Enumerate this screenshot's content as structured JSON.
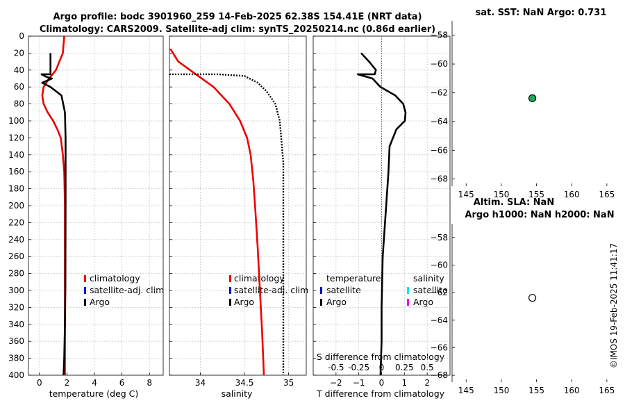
{
  "colors": {
    "climatology": "#ee0000",
    "satellite": "#0000dd",
    "argo": "#000000",
    "satellite_s": "#00e5ee",
    "argo_s": "#ee00ee",
    "sst_marker": "#22aa55"
  },
  "titles": {
    "line1": "Argo profile: bodc 3901960_259 14-Feb-2025 62.38S 154.41E (NRT data)",
    "line2": "Climatology: CARS2009. Satellite-adj clim: synTS_20250214.nc (0.86d earlier)",
    "sst_title": "sat. SST: NaN Argo: 0.731",
    "altim_title1": "Altim. SLA: NaN",
    "altim_title2": "Argo h1000: NaN h2000: NaN",
    "watermark": "©IMOS 19-Feb-2025 11:41:17"
  },
  "legends": {
    "temp": [
      "climatology",
      "satellite-adj. clim",
      "Argo"
    ],
    "sal": [
      "climatology",
      "satellite-adj. clim",
      "Argo"
    ],
    "diff_t_header": "temperature",
    "diff_s_header": "salinity",
    "diff_t": [
      "satellite",
      "Argo"
    ],
    "diff_s": [
      "satellite",
      "Argo"
    ]
  },
  "chart_data": [
    {
      "type": "line",
      "name": "temperature",
      "xlabel": "temperature (deg C)",
      "ylabel": "",
      "xlim": [
        -0.8,
        9
      ],
      "ylim": [
        0,
        400
      ],
      "xticks": [
        0,
        2,
        4,
        6,
        8
      ],
      "yticks": [
        0,
        20,
        40,
        60,
        80,
        100,
        120,
        140,
        160,
        180,
        200,
        220,
        240,
        260,
        280,
        300,
        320,
        340,
        360,
        380,
        400
      ],
      "series": [
        {
          "name": "climatology",
          "x": [
            1.8,
            1.7,
            1.2,
            0.7,
            0.3,
            0.2,
            0.3,
            0.6,
            1.0,
            1.3,
            1.55,
            1.7,
            1.8,
            1.85,
            1.85
          ],
          "y": [
            0,
            20,
            40,
            50,
            60,
            70,
            80,
            90,
            100,
            110,
            120,
            140,
            160,
            200,
            400
          ]
        },
        {
          "name": "Argo",
          "x": [
            0.8,
            0.8,
            0.15,
            0.5,
            0.9,
            0.2,
            0.8,
            1.6,
            1.85,
            1.9,
            1.9,
            1.88,
            1.85,
            1.8,
            1.75
          ],
          "y": [
            20,
            45,
            45,
            48,
            50,
            55,
            60,
            70,
            90,
            120,
            200,
            300,
            340,
            380,
            400
          ]
        }
      ]
    },
    {
      "type": "line",
      "name": "salinity",
      "xlabel": "salinity",
      "ylabel": "",
      "xlim": [
        33.65,
        35.2
      ],
      "ylim": [
        0,
        400
      ],
      "xticks": [
        34,
        34.5,
        35
      ],
      "xticklabels": [
        "34",
        "34.5",
        "35"
      ],
      "series": [
        {
          "name": "climatology",
          "x": [
            33.66,
            33.75,
            33.95,
            34.15,
            34.33,
            34.45,
            34.53,
            34.57,
            34.6,
            34.62,
            34.65,
            34.7,
            34.72
          ],
          "y": [
            15,
            30,
            45,
            60,
            80,
            100,
            120,
            140,
            170,
            200,
            250,
            350,
            400
          ]
        },
        {
          "name": "Argo",
          "x": [
            33.65,
            34.2,
            34.5,
            34.65,
            34.75,
            34.85,
            34.9,
            34.94,
            34.94
          ],
          "y": [
            45,
            45,
            47,
            55,
            65,
            80,
            100,
            150,
            400
          ]
        }
      ]
    },
    {
      "type": "line",
      "name": "difference",
      "xlabel": "T difference from climatology",
      "s_axis_label": "S difference from climatology",
      "xlim": [
        -3,
        3
      ],
      "ylim": [
        0,
        400
      ],
      "xticks": [
        -2,
        -1,
        0,
        1,
        2
      ],
      "s_ticklabels": [
        "-0.5",
        "-0.25",
        "0",
        "0.25",
        "0.5"
      ],
      "series": [
        {
          "name": "Argo",
          "x": [
            -0.9,
            -0.55,
            -0.25,
            -0.3,
            -1.05,
            -0.4,
            -0.05,
            0.6,
            0.95,
            1.05,
            1.02,
            0.65,
            0.35,
            0.3,
            0.2,
            0.05,
            0.0,
            0.0,
            -0.05
          ],
          "y": [
            20,
            30,
            40,
            45,
            45,
            50,
            60,
            70,
            80,
            90,
            100,
            110,
            130,
            160,
            200,
            260,
            320,
            360,
            400
          ]
        }
      ]
    },
    {
      "type": "scatter",
      "name": "sst_map",
      "title": "sat. SST: NaN Argo: 0.731",
      "xlim": [
        143,
        166
      ],
      "ylim": [
        -68.5,
        -57
      ],
      "xticks": [
        145,
        150,
        155,
        160,
        165
      ],
      "yticks": [
        -58,
        -60,
        -62,
        -64,
        -66,
        -68
      ],
      "points": [
        {
          "x": 154.41,
          "y": -62.38,
          "filled": true
        }
      ]
    },
    {
      "type": "scatter",
      "name": "altim_map",
      "title": "Altim. SLA: NaN",
      "xlim": [
        143,
        166
      ],
      "ylim": [
        -68.5,
        -57
      ],
      "xticks": [
        145,
        150,
        155,
        160,
        165
      ],
      "yticks": [
        -58,
        -60,
        -62,
        -64,
        -66,
        -68
      ],
      "points": [
        {
          "x": 154.41,
          "y": -62.38,
          "filled": false
        }
      ]
    }
  ]
}
